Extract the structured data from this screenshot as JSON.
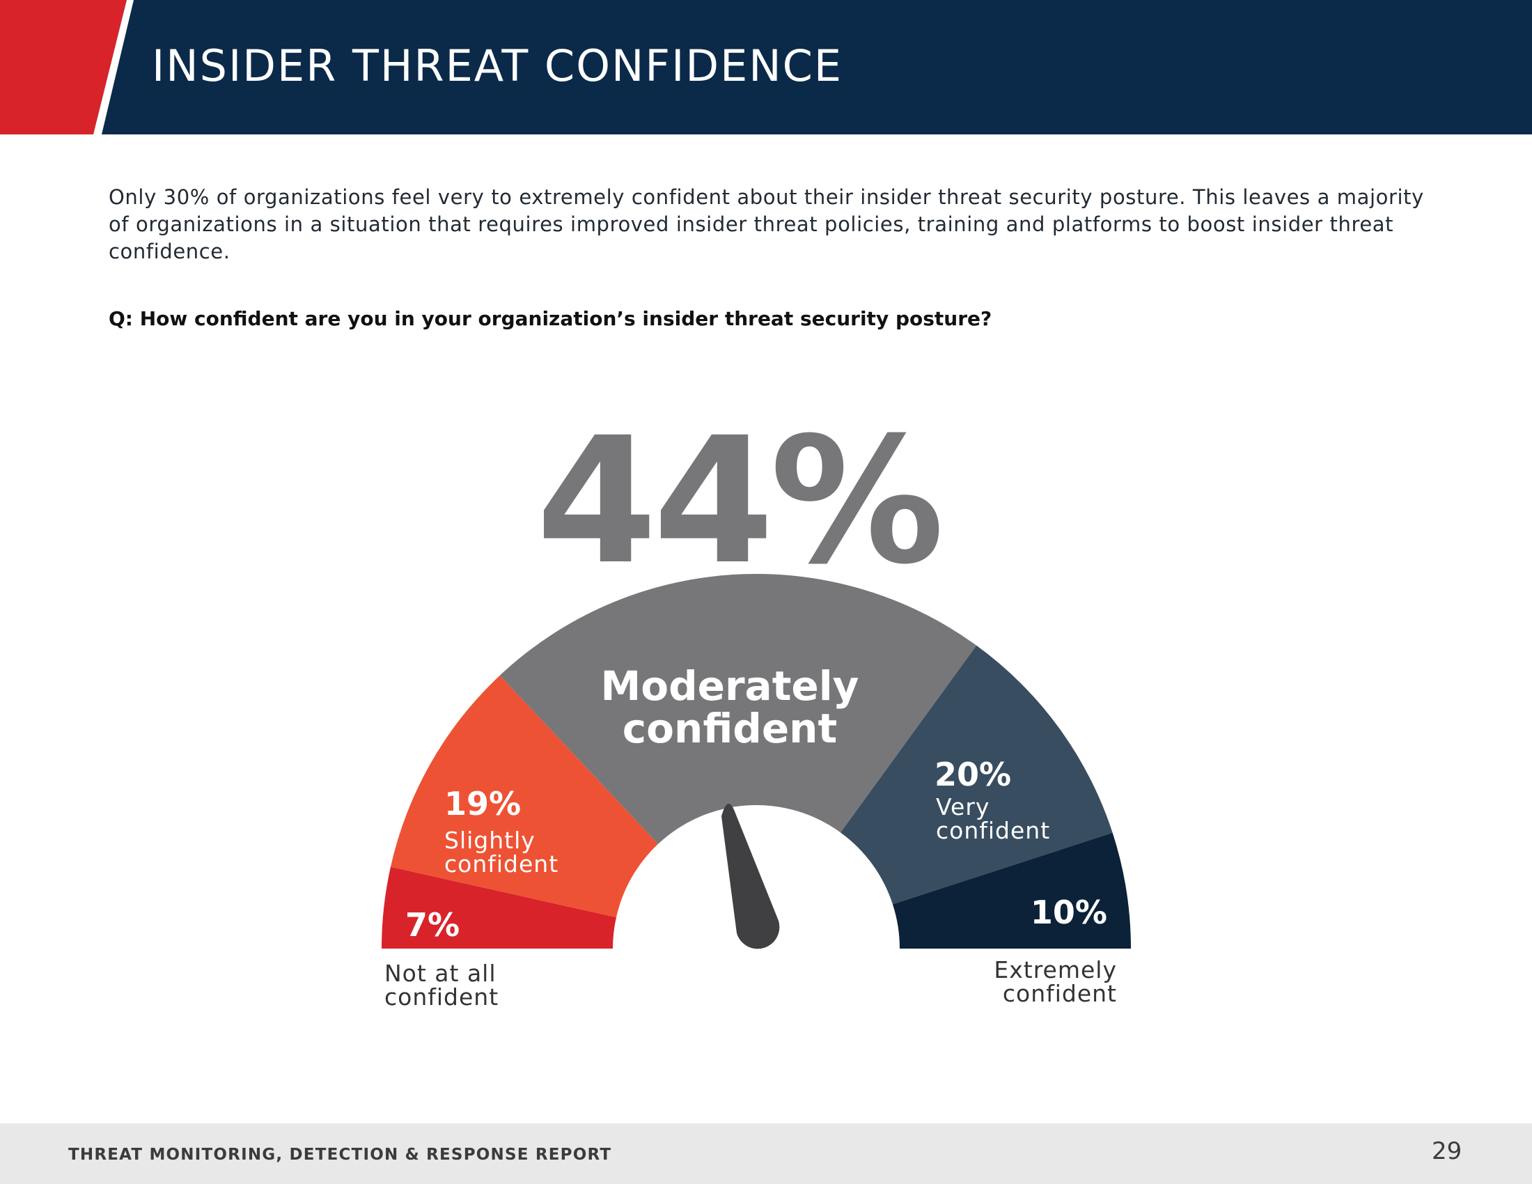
{
  "header": {
    "title": "INSIDER THREAT CONFIDENCE"
  },
  "intro_text": "Only 30% of organizations feel very to extremely confident about their insider threat security posture. This leaves a majority of organizations in a situation that requires improved insider threat policies, training and platforms to boost insider threat confidence.",
  "question": "Q: How confident are you in your organization’s insider threat security posture?",
  "highlight": {
    "value": "44%"
  },
  "chart_data": {
    "type": "pie",
    "subtype": "gauge",
    "title": "Q: How confident are you in your organization’s insider threat security posture?",
    "categories": [
      "Not at all confident",
      "Slightly confident",
      "Moderately confident",
      "Very confident",
      "Extremely confident"
    ],
    "values": [
      7,
      19,
      44,
      20,
      10
    ],
    "unit": "%",
    "colors": [
      "#d8232a",
      "#ee5234",
      "#77777a",
      "#384d60",
      "#0b2238"
    ],
    "segments": [
      {
        "pct": "7%",
        "label_line1": "Not at all",
        "label_line2": "confident"
      },
      {
        "pct": "19%",
        "label_line1": "Slightly",
        "label_line2": "confident"
      },
      {
        "pct": "44%",
        "label_line1": "Moderately",
        "label_line2": "confident"
      },
      {
        "pct": "20%",
        "label_line1": "Very",
        "label_line2": "confident"
      },
      {
        "pct": "10%",
        "label_line1": "Extremely",
        "label_line2": "confident"
      }
    ],
    "needle_color": "#404042",
    "needle_points_to": "Moderately confident"
  },
  "footer": {
    "title": "THREAT MONITORING, DETECTION & RESPONSE REPORT",
    "page": "29"
  }
}
